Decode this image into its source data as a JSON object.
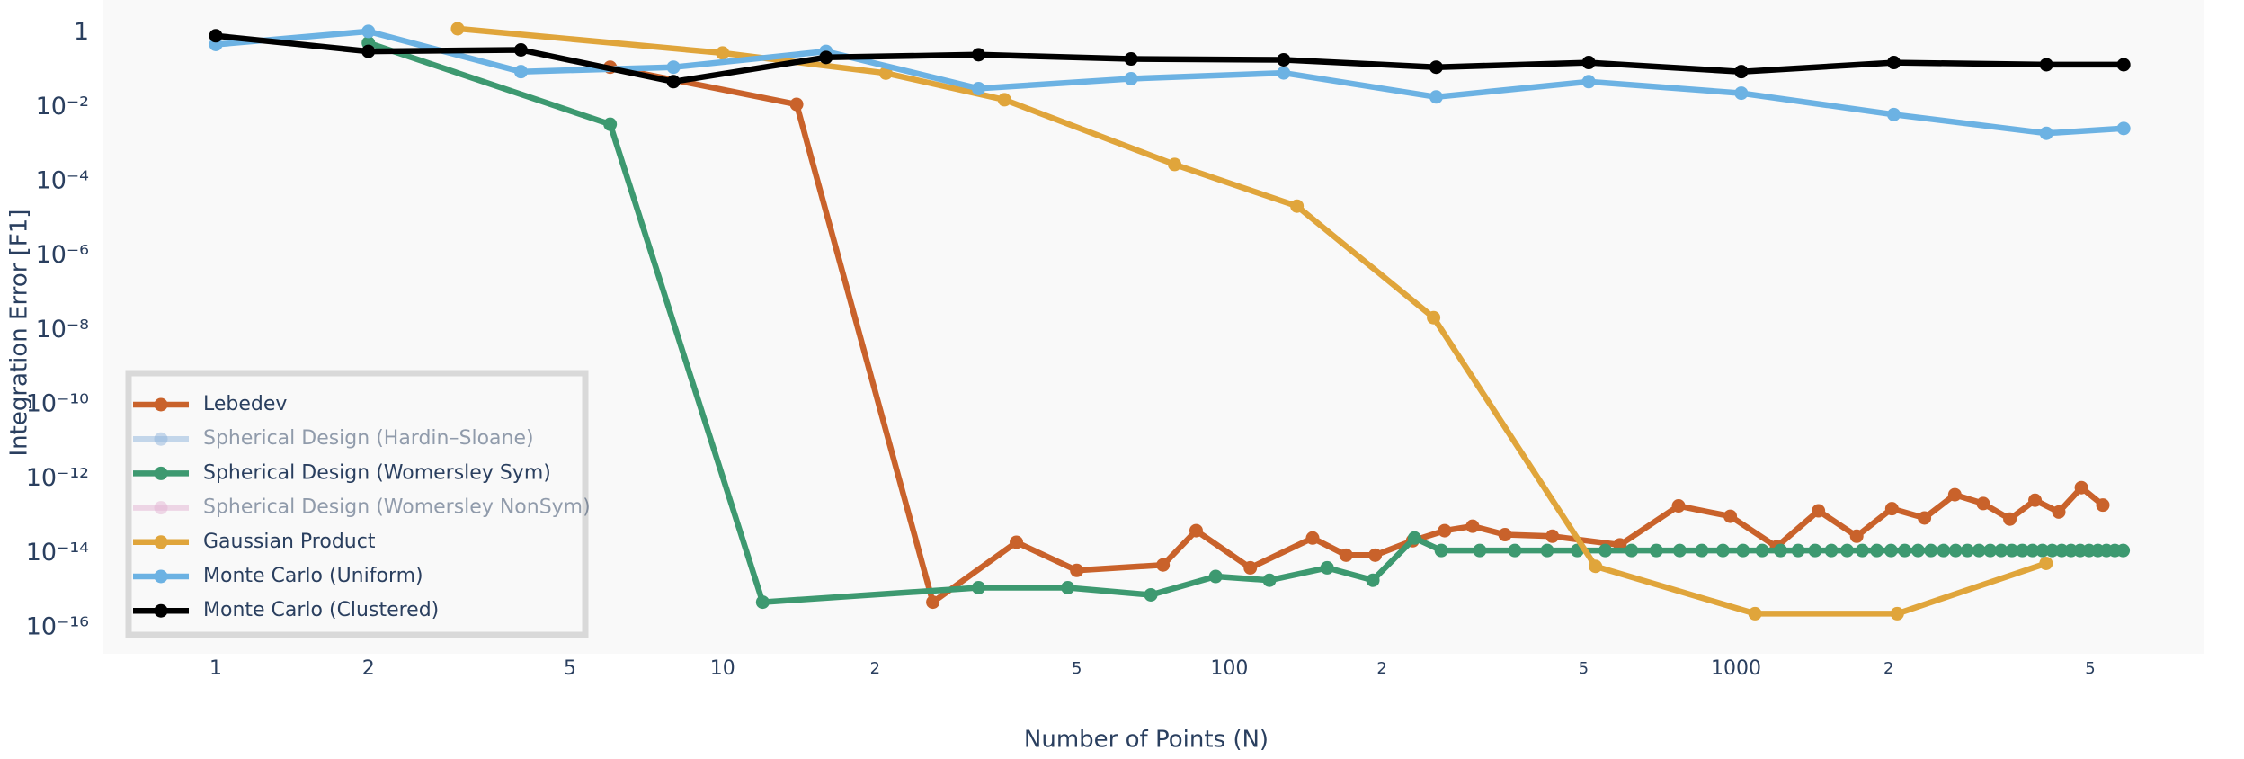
{
  "chart_data": {
    "type": "line",
    "x_label": "Number of Points (N)",
    "y_label": "Integration Error [F1]",
    "xscale": "log",
    "yscale": "log",
    "grid": false,
    "legend_position": "lower left",
    "xlim": [
      0.6,
      8400
    ],
    "ylim": [
      2e-17,
      7.7
    ],
    "xticks": [
      1,
      2,
      5,
      10,
      {
        "value": 20,
        "label": "2"
      },
      {
        "value": 50,
        "label": "5"
      },
      100,
      {
        "value": 200,
        "label": "2"
      },
      {
        "value": 500,
        "label": "5"
      },
      1000,
      {
        "value": 2000,
        "label": "2"
      },
      {
        "value": 5000,
        "label": "5"
      }
    ],
    "yticks": [
      1,
      {
        "value": 0.01,
        "label": "10⁻²"
      },
      {
        "value": 0.0001,
        "label": "10⁻⁴"
      },
      {
        "value": 1e-06,
        "label": "10⁻⁶"
      },
      {
        "value": 1e-08,
        "label": "10⁻⁸"
      },
      {
        "value": 1e-10,
        "label": "10⁻¹⁰"
      },
      {
        "value": 1e-12,
        "label": "10⁻¹²"
      },
      {
        "value": 1e-14,
        "label": "10⁻¹⁴"
      },
      {
        "value": 1e-16,
        "label": "10⁻¹⁶"
      }
    ],
    "series": [
      {
        "name": "Lebedev",
        "color": "#c9622b",
        "visible": true,
        "x": [
          6,
          14,
          26,
          38,
          50,
          74,
          86,
          110,
          146,
          170,
          194,
          230,
          266,
          302,
          350,
          434,
          590,
          770,
          974,
          1202,
          1454,
          1730,
          2030,
          2354,
          2702,
          3074,
          3470,
          3890,
          4334,
          4802,
          5294
        ],
        "values": [
          0.12,
          0.012,
          4.9e-16,
          2e-14,
          3.5e-15,
          4.9e-15,
          4.1e-14,
          4.1e-15,
          2.6e-14,
          9e-15,
          9e-15,
          2.2e-14,
          4.1e-14,
          5.4e-14,
          3.2e-14,
          2.9e-14,
          1.7e-14,
          1.9e-13,
          1e-13,
          1.5e-14,
          1.4e-13,
          2.9e-14,
          1.6e-13,
          9e-14,
          3.8e-13,
          2.2e-13,
          8.4e-14,
          2.7e-13,
          1.3e-13,
          5.9e-13,
          2e-13
        ]
      },
      {
        "name": "Spherical Design (Hardin–Sloane)",
        "color": "#8fb4dc",
        "visible": false
      },
      {
        "name": "Spherical Design (Womersley Sym)",
        "color": "#3d9970",
        "visible": true,
        "x": [
          2,
          6,
          12,
          32,
          48,
          70,
          94,
          120,
          156,
          192,
          232,
          262,
          312,
          366,
          424,
          486,
          552,
          622,
          696,
          774,
          856,
          942,
          1032,
          1126,
          1224,
          1326,
          1432,
          1542,
          1656,
          1774,
          1896,
          2022,
          2152,
          2286,
          2424,
          2566,
          2712,
          2862,
          3016,
          3174,
          3336,
          3502,
          3672,
          3846,
          4024,
          4206,
          4392,
          4582,
          4776,
          4974,
          5176,
          5382,
          5592,
          5806
        ],
        "values": [
          0.54,
          0.0035,
          4.9e-16,
          1.2e-15,
          1.2e-15,
          7.7e-16,
          2.4e-15,
          1.9e-15,
          4.1e-15,
          1.9e-15,
          2.6e-14,
          1.2e-14,
          1.2e-14,
          1.2e-14,
          1.2e-14,
          1.2e-14,
          1.2e-14,
          1.2e-14,
          1.2e-14,
          1.2e-14,
          1.2e-14,
          1.2e-14,
          1.2e-14,
          1.2e-14,
          1.2e-14,
          1.2e-14,
          1.2e-14,
          1.2e-14,
          1.2e-14,
          1.2e-14,
          1.2e-14,
          1.2e-14,
          1.2e-14,
          1.2e-14,
          1.2e-14,
          1.2e-14,
          1.2e-14,
          1.2e-14,
          1.2e-14,
          1.2e-14,
          1.2e-14,
          1.2e-14,
          1.2e-14,
          1.2e-14,
          1.2e-14,
          1.2e-14,
          1.2e-14,
          1.2e-14,
          1.2e-14,
          1.2e-14,
          1.2e-14,
          1.2e-14,
          1.2e-14,
          1.2e-14
        ]
      },
      {
        "name": "Spherical Design (Womersley NonSym)",
        "color": "#e3b3d3",
        "visible": false
      },
      {
        "name": "Gaussian Product",
        "color": "#e0a53b",
        "visible": true,
        "x": [
          3,
          10,
          21,
          36,
          78,
          136,
          253,
          528,
          1090,
          2080,
          4090
        ],
        "values": [
          1.3,
          0.29,
          0.083,
          0.016,
          0.00029,
          2.2e-05,
          2.2e-08,
          4.5e-15,
          2.4e-16,
          2.4e-16,
          5.4e-15
        ]
      },
      {
        "name": "Monte Carlo (Uniform)",
        "color": "#6cb2e3",
        "visible": true,
        "x": [
          1,
          2,
          4,
          8,
          16,
          32,
          64,
          128,
          256,
          512,
          1024,
          2048,
          4096,
          5820
        ],
        "values": [
          0.49,
          1.1,
          0.091,
          0.12,
          0.32,
          0.032,
          0.059,
          0.084,
          0.019,
          0.049,
          0.024,
          0.0064,
          0.002,
          0.0027
        ]
      },
      {
        "name": "Monte Carlo (Clustered)",
        "color": "#000000",
        "visible": true,
        "x": [
          1,
          2,
          4,
          8,
          16,
          32,
          64,
          128,
          256,
          512,
          1024,
          2048,
          4096,
          5820
        ],
        "values": [
          0.84,
          0.32,
          0.35,
          0.049,
          0.22,
          0.26,
          0.2,
          0.19,
          0.12,
          0.16,
          0.091,
          0.16,
          0.14,
          0.14
        ]
      }
    ]
  }
}
